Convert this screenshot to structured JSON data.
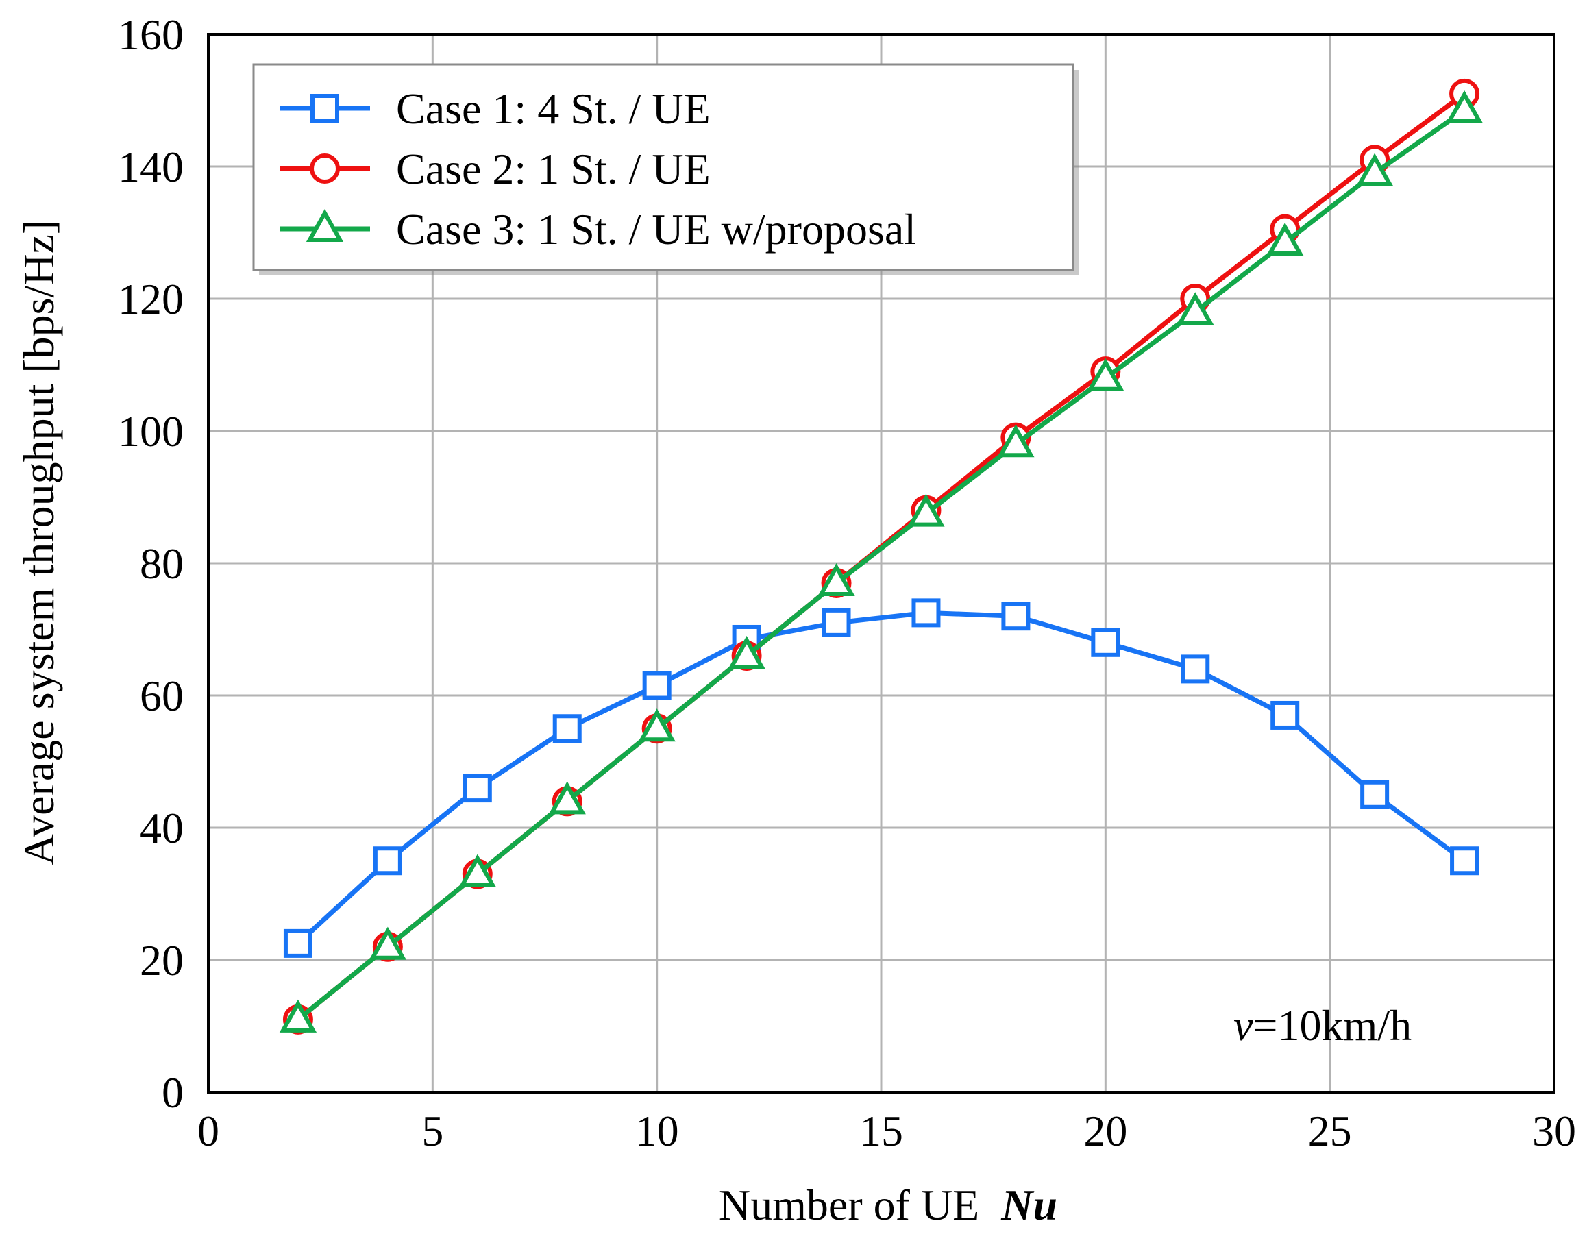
{
  "chart_data": {
    "type": "line",
    "xlabel": "Number of UE",
    "xlabel_symbol": "Nu",
    "ylabel": "Average system throughput [bps/Hz]",
    "xlim": [
      0,
      30
    ],
    "ylim": [
      0,
      160
    ],
    "xticks": [
      0,
      5,
      10,
      15,
      20,
      25,
      30
    ],
    "yticks": [
      0,
      20,
      40,
      60,
      80,
      100,
      120,
      140,
      160
    ],
    "grid": true,
    "legend_position": "top-left",
    "annotation": {
      "symbol": "v",
      "text": "=10km/h"
    },
    "series": [
      {
        "name": "Case 1: 4 St. / UE",
        "color": "#1874f5",
        "marker": "square",
        "x": [
          2,
          4,
          6,
          8,
          10,
          12,
          14,
          16,
          18,
          20,
          22,
          24,
          26,
          28
        ],
        "y": [
          22.5,
          35,
          46,
          55,
          61.5,
          68.5,
          71,
          72.5,
          72,
          68,
          64,
          57,
          45,
          35
        ]
      },
      {
        "name": "Case 2: 1 St. / UE",
        "color": "#ee1111",
        "marker": "circle",
        "x": [
          2,
          4,
          6,
          8,
          10,
          12,
          14,
          16,
          18,
          20,
          22,
          24,
          26,
          28
        ],
        "y": [
          11,
          22,
          33,
          44,
          55,
          66,
          77,
          88,
          99,
          109,
          120,
          130.5,
          141,
          151
        ]
      },
      {
        "name": "Case 3: 1 St. / UE w/proposal",
        "color": "#13a84a",
        "marker": "triangle",
        "x": [
          2,
          4,
          6,
          8,
          10,
          12,
          14,
          16,
          18,
          20,
          22,
          24,
          26,
          28
        ],
        "y": [
          11,
          22,
          33,
          44,
          55,
          66,
          77,
          87.5,
          98,
          108,
          118,
          128.5,
          139,
          148.5
        ]
      }
    ]
  }
}
